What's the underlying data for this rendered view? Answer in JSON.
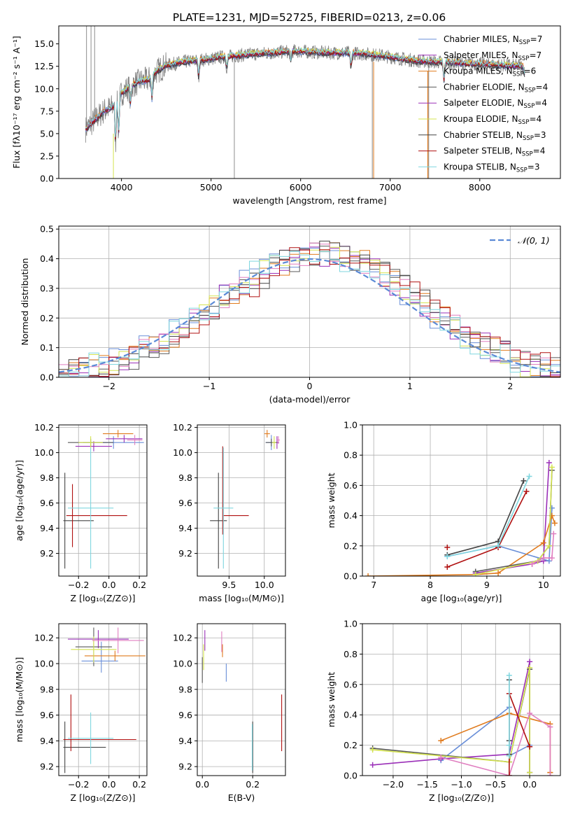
{
  "colors": {
    "chabrier_miles": "#6a8fd8",
    "salpeter_miles": "#9b30b8",
    "kroupa_miles": "#e07b1e",
    "chabrier_elodie": "#595959",
    "salpeter_elodie": "#9b30b8",
    "kroupa_elodie": "#d4e34f",
    "chabrier_stelib": "#454545",
    "salpeter_stelib": "#b01010",
    "kroupa_stelib": "#7fd6df",
    "pink": "#e07fc0",
    "grey_spec": "#808080",
    "normal_line": "#5b8ad6",
    "grid": "#b0b0b0"
  },
  "chart_data": [
    {
      "id": "spectrum",
      "type": "line",
      "title": "PLATE=1231, MJD=52725, FIBERID=0213, z=0.06",
      "xlabel": "wavelength [Angstrom, rest frame]",
      "ylabel": "Flux [fλ10⁻¹⁷ erg cm⁻² s⁻¹ A⁻¹]",
      "xlim": [
        3300,
        8900
      ],
      "ylim": [
        0,
        17
      ],
      "xticks": [
        4000,
        5000,
        6000,
        7000,
        8000
      ],
      "yticks": [
        0.0,
        2.5,
        5.0,
        7.5,
        10.0,
        12.5,
        15.0
      ],
      "legend_position": "upper-right",
      "continuum": {
        "x": [
          3600,
          3700,
          3800,
          3900,
          4000,
          4100,
          4200,
          4300,
          4400,
          4500,
          4700,
          4900,
          5100,
          5300,
          5500,
          5700,
          5900,
          6100,
          6300,
          6500,
          6700,
          6900,
          7100,
          7300,
          7500,
          7700,
          7900,
          8100,
          8300,
          8500
        ],
        "y": [
          5.5,
          6.5,
          7.5,
          8.0,
          9.5,
          10.3,
          10.8,
          11.0,
          12.0,
          12.6,
          13.0,
          13.2,
          13.5,
          13.7,
          13.9,
          14.0,
          14.2,
          14.1,
          14.0,
          14.0,
          13.9,
          13.7,
          13.4,
          13.1,
          13.0,
          12.9,
          12.8,
          12.7,
          12.6,
          12.5
        ]
      },
      "series": [
        {
          "name": "Chabrier MILES, N",
          "sub": "SSP",
          "suffix": "=7",
          "color_key": "chabrier_miles"
        },
        {
          "name": "Salpeter MILES, N",
          "sub": "SSP",
          "suffix": "=7",
          "color_key": "salpeter_miles"
        },
        {
          "name": "Kroupa MILES, N",
          "sub": "SSP",
          "suffix": "=6",
          "color_key": "kroupa_miles"
        },
        {
          "name": "Chabrier ELODIE, N",
          "sub": "SSP",
          "suffix": "=4",
          "color_key": "chabrier_elodie"
        },
        {
          "name": "Salpeter ELODIE, N",
          "sub": "SSP",
          "suffix": "=4",
          "color_key": "salpeter_elodie"
        },
        {
          "name": "Kroupa ELODIE, N",
          "sub": "SSP",
          "suffix": "=4",
          "color_key": "kroupa_elodie"
        },
        {
          "name": "Chabrier STELIB, N",
          "sub": "SSP",
          "suffix": "=3",
          "color_key": "chabrier_stelib"
        },
        {
          "name": "Salpeter STELIB, N",
          "sub": "SSP",
          "suffix": "=4",
          "color_key": "salpeter_stelib"
        },
        {
          "name": "Kroupa STELIB, N",
          "sub": "SSP",
          "suffix": "=3",
          "color_key": "kroupa_stelib"
        }
      ]
    },
    {
      "id": "residuals",
      "type": "line",
      "xlabel": "(data-model)/error",
      "ylabel": "Normed distribution",
      "xlim": [
        -2.5,
        2.5
      ],
      "ylim": [
        0,
        0.51
      ],
      "xticks": [
        -2,
        -1,
        0,
        1,
        2
      ],
      "xtick_labels": [
        "−2",
        "−1",
        "0",
        "1",
        "2"
      ],
      "yticks": [
        0.0,
        0.1,
        0.2,
        0.3,
        0.4,
        0.5
      ],
      "legend_label": "𝒩(0, 1)",
      "legend_position": "upper-right",
      "bin_width": 0.1
    },
    {
      "id": "age_vs_z",
      "type": "scatter",
      "xlabel": "Z [log₁₀(Z/Z⊙)]",
      "ylabel": "age  [log₁₀(age/yr)]",
      "xlim": [
        -0.33,
        0.25
      ],
      "ylim": [
        9.02,
        10.22
      ],
      "xticks": [
        -0.2,
        0.0,
        0.2
      ],
      "xtick_labels": [
        "−0.2",
        "0.0",
        "0.2"
      ],
      "yticks": [
        9.2,
        9.4,
        9.6,
        9.8,
        10.0,
        10.2
      ],
      "points": [
        {
          "c": "chabrier_miles",
          "x": 0.03,
          "xerr": 0.2,
          "y": 10.08,
          "yerr": 0.05
        },
        {
          "c": "salpeter_miles",
          "x": 0.1,
          "xerr": 0.12,
          "y": 10.11,
          "yerr": 0.03
        },
        {
          "c": "kroupa_miles",
          "x": 0.06,
          "xerr": 0.1,
          "y": 10.15,
          "yerr": 0.03
        },
        {
          "c": "chabrier_elodie",
          "x": -0.12,
          "xerr": 0.15,
          "y": 10.08,
          "yerr": 0.03
        },
        {
          "c": "salpeter_elodie",
          "x": -0.1,
          "xerr": 0.12,
          "y": 10.05,
          "yerr": 0.04
        },
        {
          "c": "kroupa_elodie",
          "x": -0.12,
          "xerr": 0.08,
          "y": 10.08,
          "yerr": 0.05
        },
        {
          "c": "pink",
          "x": 0.17,
          "xerr": 0.05,
          "y": 10.1,
          "yerr": 0.04
        },
        {
          "c": "chabrier_stelib",
          "x": -0.29,
          "xerr": 0.0,
          "y": 9.46,
          "yerr": 0.38
        },
        {
          "c": "chabrier_stelib",
          "x": -0.2,
          "xerr": 0.1,
          "y": 9.46,
          "yerr": 0.0
        },
        {
          "c": "salpeter_stelib",
          "x": -0.08,
          "xerr": 0.2,
          "y": 9.5,
          "yerr": 0.0
        },
        {
          "c": "salpeter_stelib",
          "x": -0.24,
          "xerr": 0.0,
          "y": 9.5,
          "yerr": 0.25
        },
        {
          "c": "kroupa_stelib",
          "x": -0.12,
          "xerr": 0.15,
          "y": 9.56,
          "yerr": 0.48
        }
      ]
    },
    {
      "id": "age_vs_mass",
      "type": "scatter",
      "xlabel": "mass [log₁₀(M/M⊙)]",
      "xlim": [
        9.05,
        10.3
      ],
      "ylim": [
        9.02,
        10.22
      ],
      "xticks": [
        9.5,
        10.0
      ],
      "yticks": [
        9.2,
        9.4,
        9.6,
        9.8,
        10.0,
        10.2
      ],
      "points": [
        {
          "c": "chabrier_miles",
          "x": 10.1,
          "xerr": 0.08,
          "y": 10.08,
          "yerr": 0.06
        },
        {
          "c": "salpeter_miles",
          "x": 10.18,
          "xerr": 0.03,
          "y": 10.08,
          "yerr": 0.05
        },
        {
          "c": "kroupa_miles",
          "x": 10.04,
          "xerr": 0.04,
          "y": 10.15,
          "yerr": 0.03
        },
        {
          "c": "chabrier_elodie",
          "x": 10.1,
          "xerr": 0.08,
          "y": 10.08,
          "yerr": 0.03
        },
        {
          "c": "kroupa_elodie",
          "x": 10.14,
          "xerr": 0.03,
          "y": 10.08,
          "yerr": 0.05
        },
        {
          "c": "pink",
          "x": 10.2,
          "xerr": 0.02,
          "y": 10.1,
          "yerr": 0.03
        },
        {
          "c": "chabrier_stelib",
          "x": 9.35,
          "xerr": 0.0,
          "y": 9.46,
          "yerr": 0.38
        },
        {
          "c": "chabrier_stelib",
          "x": 9.35,
          "xerr": 0.12,
          "y": 9.46,
          "yerr": 0.0
        },
        {
          "c": "salpeter_stelib",
          "x": 9.41,
          "xerr": 0.0,
          "y": 9.7,
          "yerr": 0.35
        },
        {
          "c": "salpeter_stelib",
          "x": 9.6,
          "xerr": 0.18,
          "y": 9.5,
          "yerr": 0.0
        },
        {
          "c": "kroupa_stelib",
          "x": 9.42,
          "xerr": 0.14,
          "y": 9.56,
          "yerr": 0.48
        }
      ]
    },
    {
      "id": "weight_vs_age",
      "type": "line",
      "xlabel": "age  [log₁₀(age/yr)]",
      "ylabel": "mass weight",
      "xlim": [
        6.8,
        10.3
      ],
      "ylim": [
        0,
        1.0
      ],
      "xticks": [
        7,
        8,
        9,
        10
      ],
      "yticks": [
        0.0,
        0.2,
        0.4,
        0.6,
        0.8,
        1.0
      ],
      "series": [
        {
          "c": "chabrier_miles",
          "x": [
            8.3,
            9.2,
            10.1,
            10.15
          ],
          "y": [
            0.13,
            0.2,
            0.1,
            0.45
          ]
        },
        {
          "c": "salpeter_miles",
          "x": [
            8.8,
            9.8,
            10.0,
            10.1
          ],
          "y": [
            0.02,
            0.08,
            0.1,
            0.75
          ]
        },
        {
          "c": "kroupa_miles",
          "x": [
            6.9,
            8.8,
            9.2,
            10.0,
            10.15,
            10.2
          ],
          "y": [
            0.0,
            0.01,
            0.02,
            0.22,
            0.4,
            0.35
          ]
        },
        {
          "c": "chabrier_elodie",
          "x": [
            8.8,
            9.9,
            10.1,
            10.15
          ],
          "y": [
            0.03,
            0.1,
            0.2,
            0.7
          ]
        },
        {
          "c": "kroupa_elodie",
          "x": [
            8.8,
            9.9,
            10.1,
            10.15
          ],
          "y": [
            0.01,
            0.1,
            0.2,
            0.72
          ]
        },
        {
          "c": "pink",
          "x": [
            9.8,
            10.0,
            10.15,
            10.18
          ],
          "y": [
            0.08,
            0.12,
            0.12,
            0.28
          ]
        },
        {
          "c": "chabrier_stelib",
          "x": [
            8.3,
            9.2,
            9.65
          ],
          "y": [
            0.14,
            0.23,
            0.63
          ]
        },
        {
          "c": "salpeter_stelib",
          "x": [
            8.3,
            9.2,
            9.7
          ],
          "y": [
            0.06,
            0.19,
            0.56
          ]
        },
        {
          "c": "salpeter_stelib",
          "x": [
            8.3
          ],
          "y": [
            0.19
          ]
        },
        {
          "c": "kroupa_stelib",
          "x": [
            8.3,
            9.2,
            9.75
          ],
          "y": [
            0.13,
            0.2,
            0.66
          ]
        }
      ]
    },
    {
      "id": "mass_vs_z",
      "type": "scatter",
      "xlabel": "Z [log₁₀(Z/Z⊙)]",
      "ylabel": "mass [log₁₀(M/M⊙)]",
      "xlim": [
        -0.33,
        0.25
      ],
      "ylim": [
        9.13,
        10.31
      ],
      "xticks": [
        -0.2,
        0.0,
        0.2
      ],
      "xtick_labels": [
        "−0.2",
        "0.0",
        "0.2"
      ],
      "yticks": [
        9.2,
        9.4,
        9.6,
        9.8,
        10.0,
        10.2
      ],
      "points": [
        {
          "c": "chabrier_miles",
          "x": -0.06,
          "xerr": 0.12,
          "y": 10.02,
          "yerr": 0.0
        },
        {
          "c": "chabrier_miles",
          "x": -0.05,
          "xerr": 0.0,
          "y": 10.05,
          "yerr": 0.12
        },
        {
          "c": "salpeter_miles",
          "x": -0.07,
          "xerr": 0.2,
          "y": 10.19,
          "yerr": 0.07
        },
        {
          "c": "kroupa_miles",
          "x": 0.04,
          "xerr": 0.2,
          "y": 10.06,
          "yerr": 0.04
        },
        {
          "c": "chabrier_elodie",
          "x": -0.1,
          "xerr": 0.12,
          "y": 10.13,
          "yerr": 0.15
        },
        {
          "c": "kroupa_elodie",
          "x": -0.1,
          "xerr": 0.15,
          "y": 10.11,
          "yerr": 0.1
        },
        {
          "c": "pink",
          "x": 0.06,
          "xerr": 0.17,
          "y": 10.18,
          "yerr": 0.1
        },
        {
          "c": "chabrier_stelib",
          "x": -0.16,
          "xerr": 0.14,
          "y": 9.35,
          "yerr": 0.0
        },
        {
          "c": "chabrier_stelib",
          "x": -0.29,
          "xerr": 0.0,
          "y": 9.35,
          "yerr": 0.2
        },
        {
          "c": "salpeter_stelib",
          "x": -0.06,
          "xerr": 0.24,
          "y": 9.41,
          "yerr": 0.0
        },
        {
          "c": "salpeter_stelib",
          "x": -0.25,
          "xerr": 0.0,
          "y": 9.54,
          "yerr": 0.22
        },
        {
          "c": "kroupa_stelib",
          "x": -0.12,
          "xerr": 0.15,
          "y": 9.42,
          "yerr": 0.2
        }
      ]
    },
    {
      "id": "mass_vs_ebv",
      "type": "scatter",
      "xlabel": "E(B-V)",
      "xlim": [
        -0.02,
        0.33
      ],
      "ylim": [
        9.13,
        10.31
      ],
      "xticks": [
        0.0,
        0.2
      ],
      "yticks": [
        9.2,
        9.4,
        9.6,
        9.8,
        10.0,
        10.2
      ],
      "points": [
        {
          "c": "chabrier_miles",
          "x": 0.095,
          "xerr": 0.0,
          "y": 9.93,
          "yerr": 0.07
        },
        {
          "c": "salpeter_miles",
          "x": 0.01,
          "xerr": 0.0,
          "y": 10.18,
          "yerr": 0.08
        },
        {
          "c": "kroupa_miles",
          "x": 0.08,
          "xerr": 0.0,
          "y": 10.1,
          "yerr": 0.05
        },
        {
          "c": "chabrier_elodie",
          "x": 0.0,
          "xerr": 0.0,
          "y": 9.95,
          "yerr": 0.1
        },
        {
          "c": "kroupa_elodie",
          "x": 0.005,
          "xerr": 0.0,
          "y": 10.05,
          "yerr": 0.1
        },
        {
          "c": "pink",
          "x": 0.077,
          "xerr": 0.0,
          "y": 10.17,
          "yerr": 0.08
        },
        {
          "c": "chabrier_stelib",
          "x": 0.2,
          "xerr": 0.0,
          "y": 9.35,
          "yerr": 0.2
        },
        {
          "c": "kroupa_stelib",
          "x": 0.198,
          "xerr": 0.0,
          "y": 9.35,
          "yerr": 0.18
        },
        {
          "c": "salpeter_stelib",
          "x": 0.315,
          "xerr": 0.0,
          "y": 9.54,
          "yerr": 0.22
        }
      ]
    },
    {
      "id": "weight_vs_z",
      "type": "line",
      "xlabel": "Z [log₁₀(Z/Z⊙)]",
      "ylabel": "mass weight",
      "xlim": [
        -2.45,
        0.45
      ],
      "ylim": [
        0,
        1.0
      ],
      "xticks": [
        -2.0,
        -1.5,
        -1.0,
        -0.5,
        0.0
      ],
      "xtick_labels": [
        "−2.0",
        "−1.5",
        "−1.0",
        "−0.5",
        "0.0"
      ],
      "yticks": [
        0.0,
        0.2,
        0.4,
        0.6,
        0.8,
        1.0
      ],
      "series": [
        {
          "c": "chabrier_miles",
          "x": [
            -1.3,
            -0.3,
            -0.3,
            0.0
          ],
          "y": [
            0.1,
            0.45,
            0.13,
            0.2
          ]
        },
        {
          "c": "salpeter_miles",
          "x": [
            -2.3,
            -1.3,
            -0.3,
            0.0,
            0.0
          ],
          "y": [
            0.07,
            0.11,
            0.14,
            0.75,
            0.02
          ]
        },
        {
          "c": "kroupa_miles",
          "x": [
            -1.3,
            -0.3,
            0.3,
            0.3,
            0.3
          ],
          "y": [
            0.23,
            0.41,
            0.34,
            0.02,
            0.02
          ]
        },
        {
          "c": "chabrier_elodie",
          "x": [
            -2.3,
            -0.3,
            0.0,
            0.0
          ],
          "y": [
            0.18,
            0.09,
            0.7,
            0.02
          ]
        },
        {
          "c": "kroupa_elodie",
          "x": [
            -2.3,
            -0.3,
            0.0,
            0.0
          ],
          "y": [
            0.17,
            0.09,
            0.71,
            0.02
          ]
        },
        {
          "c": "pink",
          "x": [
            -1.3,
            -0.3,
            0.0,
            0.3,
            0.3
          ],
          "y": [
            0.12,
            0.0,
            0.41,
            0.32,
            0.0
          ]
        },
        {
          "c": "chabrier_stelib",
          "x": [
            -0.3,
            -0.3,
            -0.3
          ],
          "y": [
            0.63,
            0.23,
            0.14
          ]
        },
        {
          "c": "salpeter_stelib",
          "x": [
            -0.3,
            -0.3,
            0.0
          ],
          "y": [
            0.0,
            0.54,
            0.19
          ]
        },
        {
          "c": "kroupa_stelib",
          "x": [
            -0.3,
            -0.3,
            -0.3
          ],
          "y": [
            0.66,
            0.2,
            0.13
          ]
        }
      ]
    }
  ]
}
